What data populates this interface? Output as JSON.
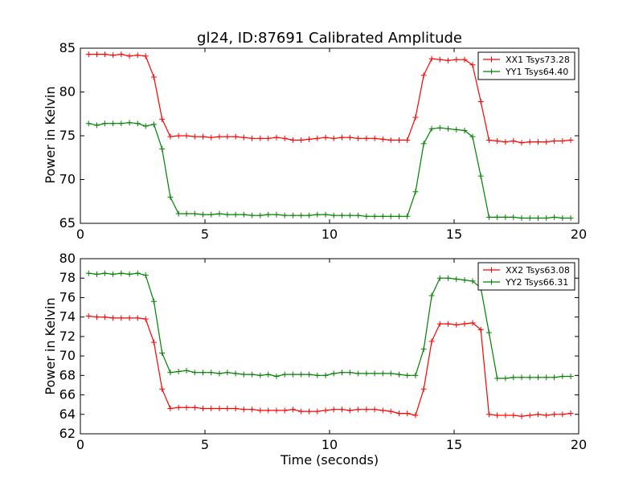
{
  "chart_data": [
    {
      "type": "line",
      "title": "gl24, ID:87691 Calibrated Amplitude",
      "xlabel": "",
      "ylabel": "Power in Kelvin",
      "xlim": [
        0,
        20
      ],
      "ylim": [
        65,
        85
      ],
      "xticks": [
        0,
        5,
        10,
        15,
        20
      ],
      "yticks": [
        65,
        70,
        75,
        80,
        85
      ],
      "legend_position": "top-right",
      "grid": false,
      "x": [
        0.33,
        0.66,
        0.98,
        1.31,
        1.64,
        1.97,
        2.3,
        2.62,
        2.95,
        3.28,
        3.61,
        3.94,
        4.26,
        4.59,
        4.92,
        5.25,
        5.58,
        5.9,
        6.23,
        6.56,
        6.89,
        7.22,
        7.54,
        7.87,
        8.2,
        8.53,
        8.86,
        9.18,
        9.51,
        9.84,
        10.17,
        10.5,
        10.82,
        11.15,
        11.48,
        11.81,
        12.14,
        12.46,
        12.79,
        13.12,
        13.45,
        13.78,
        14.1,
        14.43,
        14.76,
        15.09,
        15.42,
        15.74,
        16.07,
        16.4,
        16.73,
        17.06,
        17.38,
        17.71,
        18.04,
        18.37,
        18.7,
        19.02,
        19.35,
        19.68
      ],
      "series": [
        {
          "name": "XX1 Tsys73.28",
          "color": "#ff0000",
          "values": [
            84.3,
            84.3,
            84.3,
            84.2,
            84.3,
            84.1,
            84.2,
            84.1,
            81.7,
            76.9,
            74.9,
            75.0,
            75.0,
            74.9,
            74.9,
            74.8,
            74.9,
            74.9,
            74.9,
            74.8,
            74.7,
            74.7,
            74.7,
            74.8,
            74.7,
            74.5,
            74.5,
            74.6,
            74.7,
            74.8,
            74.7,
            74.8,
            74.8,
            74.7,
            74.7,
            74.7,
            74.6,
            74.5,
            74.5,
            74.5,
            77.1,
            81.9,
            83.8,
            83.7,
            83.6,
            83.7,
            83.7,
            83.1,
            78.9,
            74.5,
            74.4,
            74.3,
            74.4,
            74.2,
            74.3,
            74.3,
            74.3,
            74.4,
            74.4,
            74.5
          ]
        },
        {
          "name": "YY1 Tsys64.40",
          "color": "#008000",
          "values": [
            76.4,
            76.2,
            76.4,
            76.4,
            76.4,
            76.5,
            76.4,
            76.1,
            76.3,
            73.5,
            68.0,
            66.1,
            66.1,
            66.1,
            66.0,
            66.0,
            66.1,
            66.0,
            66.0,
            66.0,
            65.9,
            65.9,
            66.0,
            66.0,
            65.9,
            65.9,
            65.9,
            65.9,
            66.0,
            66.0,
            65.9,
            65.9,
            65.9,
            65.9,
            65.8,
            65.8,
            65.8,
            65.8,
            65.8,
            65.8,
            68.6,
            74.1,
            75.8,
            75.9,
            75.8,
            75.7,
            75.6,
            74.9,
            70.4,
            65.7,
            65.7,
            65.7,
            65.7,
            65.6,
            65.6,
            65.6,
            65.6,
            65.7,
            65.6,
            65.6
          ]
        }
      ]
    },
    {
      "type": "line",
      "title": "",
      "xlabel": "Time (seconds)",
      "ylabel": "Power in Kelvin",
      "xlim": [
        0,
        20
      ],
      "ylim": [
        62,
        80
      ],
      "xticks": [
        0,
        5,
        10,
        15,
        20
      ],
      "yticks": [
        62,
        64,
        66,
        68,
        70,
        72,
        74,
        76,
        78,
        80
      ],
      "legend_position": "top-right",
      "grid": false,
      "x": [
        0.33,
        0.66,
        0.98,
        1.31,
        1.64,
        1.97,
        2.3,
        2.62,
        2.95,
        3.28,
        3.61,
        3.94,
        4.26,
        4.59,
        4.92,
        5.25,
        5.58,
        5.9,
        6.23,
        6.56,
        6.89,
        7.22,
        7.54,
        7.87,
        8.2,
        8.53,
        8.86,
        9.18,
        9.51,
        9.84,
        10.17,
        10.5,
        10.82,
        11.15,
        11.48,
        11.81,
        12.14,
        12.46,
        12.79,
        13.12,
        13.45,
        13.78,
        14.1,
        14.43,
        14.76,
        15.09,
        15.42,
        15.74,
        16.07,
        16.4,
        16.73,
        17.06,
        17.38,
        17.71,
        18.04,
        18.37,
        18.7,
        19.02,
        19.35,
        19.68
      ],
      "series": [
        {
          "name": "XX2 Tsys63.08",
          "color": "#ff0000",
          "values": [
            74.1,
            74.0,
            74.0,
            73.9,
            73.9,
            73.9,
            73.9,
            73.8,
            71.4,
            66.6,
            64.6,
            64.7,
            64.7,
            64.7,
            64.6,
            64.6,
            64.6,
            64.6,
            64.6,
            64.5,
            64.5,
            64.4,
            64.4,
            64.4,
            64.4,
            64.5,
            64.3,
            64.3,
            64.3,
            64.4,
            64.5,
            64.5,
            64.4,
            64.5,
            64.5,
            64.5,
            64.4,
            64.3,
            64.1,
            64.1,
            63.9,
            66.6,
            71.5,
            73.3,
            73.3,
            73.2,
            73.3,
            73.4,
            72.7,
            64.0,
            63.9,
            63.9,
            63.9,
            63.8,
            63.9,
            64.0,
            63.9,
            64.0,
            64.0,
            64.1
          ]
        },
        {
          "name": "YY2 Tsys66.31",
          "color": "#008000",
          "values": [
            78.5,
            78.4,
            78.5,
            78.4,
            78.5,
            78.4,
            78.5,
            78.3,
            75.6,
            70.3,
            68.3,
            68.4,
            68.5,
            68.3,
            68.3,
            68.3,
            68.2,
            68.3,
            68.2,
            68.1,
            68.1,
            68.0,
            68.1,
            67.9,
            68.1,
            68.1,
            68.1,
            68.1,
            68.0,
            68.0,
            68.2,
            68.3,
            68.3,
            68.2,
            68.2,
            68.2,
            68.2,
            68.2,
            68.1,
            68.0,
            68.0,
            70.7,
            76.2,
            78.0,
            78.0,
            77.9,
            77.8,
            77.7,
            77.0,
            72.4,
            67.7,
            67.7,
            67.8,
            67.8,
            67.8,
            67.8,
            67.8,
            67.8,
            67.9,
            67.9
          ]
        }
      ]
    }
  ]
}
